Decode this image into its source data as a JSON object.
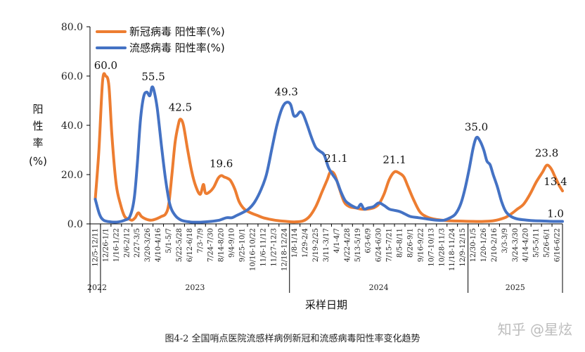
{
  "chart_data": {
    "type": "line",
    "ylabel_chars": [
      "阳",
      "性",
      "率",
      "(%)"
    ],
    "xlabel": "采样日期",
    "ylim": [
      0,
      80
    ],
    "yticks": [
      "0.0",
      "20.0",
      "40.0",
      "60.0",
      "80.0"
    ],
    "grid": false,
    "legend_position": "top-left",
    "x_ticks": [
      "12/5-12/11",
      "12/26-1/1",
      "1/16-1/22",
      "2/6-2/12",
      "2/27-3/5",
      "3/20-3/26",
      "4/10-4/16",
      "5/1-5/7",
      "5/22-5/28",
      "6/12-6/18",
      "7/3-7/9",
      "7/24-7/30",
      "8/14-8/20",
      "9/4-9/10",
      "9/25-10/1",
      "10/16-10/22",
      "11/6-11/12",
      "11/27-12/3",
      "12/18-12/24",
      "1/8-1/14",
      "1/29-2/4",
      "2/19-2/25",
      "3/11-3/17",
      "4/1-4/7",
      "4/22-4/28",
      "5/13-5/19",
      "6/3-6/9",
      "6/24-6/30",
      "7/15-7/21",
      "8/5-8/11",
      "8/26-9/1",
      "9/16-9/22",
      "10/7-10/13",
      "10/28-11/3",
      "11/18-11/24",
      "12/9-12/15",
      "12/30-1/5",
      "1/20-1/26",
      "2/10-2/16",
      "3/3-3/9",
      "3/24-3/30",
      "4/14-4/20",
      "5/5-5/11",
      "5/26-6/1",
      "6/16-6/22"
    ],
    "years": [
      {
        "label": "2022",
        "start": 0,
        "end": 1
      },
      {
        "label": "2023",
        "start": 1,
        "end": 18
      },
      {
        "label": "2024",
        "start": 19,
        "end": 35
      },
      {
        "label": "2025",
        "start": 36,
        "end": 44
      }
    ],
    "series": [
      {
        "name": "新冠病毒 阳性率(%)",
        "color": "#ED7D31",
        "points": [
          [
            0,
            10
          ],
          [
            0.35,
            30
          ],
          [
            0.7,
            58
          ],
          [
            1,
            60
          ],
          [
            1.3,
            56
          ],
          [
            1.6,
            35
          ],
          [
            2,
            16
          ],
          [
            2.4,
            8
          ],
          [
            2.8,
            3
          ],
          [
            3.2,
            2
          ],
          [
            3.5,
            1.5
          ],
          [
            3.8,
            2.5
          ],
          [
            4.1,
            4.5
          ],
          [
            4.4,
            3
          ],
          [
            4.8,
            2
          ],
          [
            5.3,
            1.5
          ],
          [
            5.8,
            2
          ],
          [
            6.3,
            3
          ],
          [
            6.7,
            4
          ],
          [
            7,
            8
          ],
          [
            7.3,
            20
          ],
          [
            7.6,
            33
          ],
          [
            7.9,
            40
          ],
          [
            8.1,
            42.5
          ],
          [
            8.4,
            40
          ],
          [
            8.8,
            30
          ],
          [
            9.2,
            21
          ],
          [
            9.6,
            15
          ],
          [
            10.0,
            12
          ],
          [
            10.3,
            16
          ],
          [
            10.5,
            12.5
          ],
          [
            10.9,
            13
          ],
          [
            11.3,
            15
          ],
          [
            11.7,
            18.5
          ],
          [
            12.0,
            19.6
          ],
          [
            12.3,
            19
          ],
          [
            12.6,
            18.5
          ],
          [
            12.9,
            17.5
          ],
          [
            13.3,
            14
          ],
          [
            13.7,
            9
          ],
          [
            14.2,
            6
          ],
          [
            14.8,
            4.5
          ],
          [
            15.4,
            3.5
          ],
          [
            16.0,
            2.5
          ],
          [
            16.7,
            1.8
          ],
          [
            17.4,
            1.3
          ],
          [
            18.2,
            1.0
          ],
          [
            19.0,
            0.8
          ],
          [
            19.8,
            1.2
          ],
          [
            20.4,
            3
          ],
          [
            21.0,
            7
          ],
          [
            21.6,
            13
          ],
          [
            22.1,
            18
          ],
          [
            22.4,
            21.1
          ],
          [
            22.8,
            20
          ],
          [
            23.2,
            15
          ],
          [
            23.7,
            9
          ],
          [
            24.2,
            7
          ],
          [
            24.8,
            6.5
          ],
          [
            25.3,
            6
          ],
          [
            25.9,
            6
          ],
          [
            26.5,
            6.5
          ],
          [
            27.0,
            8
          ],
          [
            27.5,
            12
          ],
          [
            28.0,
            18
          ],
          [
            28.5,
            21.1
          ],
          [
            29.0,
            20.5
          ],
          [
            29.4,
            19
          ],
          [
            29.8,
            15
          ],
          [
            30.3,
            10
          ],
          [
            30.9,
            5
          ],
          [
            31.5,
            3
          ],
          [
            32.2,
            2
          ],
          [
            33.0,
            1.5
          ],
          [
            34.0,
            1.2
          ],
          [
            35.0,
            1.1
          ],
          [
            36.0,
            1.0
          ],
          [
            37.0,
            1.0
          ],
          [
            38.0,
            1.3
          ],
          [
            39.0,
            2.5
          ],
          [
            39.6,
            4
          ],
          [
            40.2,
            6
          ],
          [
            40.8,
            8
          ],
          [
            41.4,
            12
          ],
          [
            42.0,
            17
          ],
          [
            42.6,
            21
          ],
          [
            43.0,
            23.8
          ],
          [
            43.4,
            22.5
          ],
          [
            43.8,
            19
          ],
          [
            44.2,
            15.5
          ],
          [
            44.5,
            13.4
          ]
        ]
      },
      {
        "name": "流感病毒 阳性率(%)",
        "color": "#4472C4",
        "points": [
          [
            0,
            10
          ],
          [
            0.4,
            4
          ],
          [
            0.8,
            1.5
          ],
          [
            1.5,
            0.8
          ],
          [
            2.2,
            0.8
          ],
          [
            2.8,
            1.5
          ],
          [
            3.3,
            3
          ],
          [
            3.7,
            10
          ],
          [
            4.0,
            24
          ],
          [
            4.3,
            42
          ],
          [
            4.6,
            51.5
          ],
          [
            4.9,
            53.5
          ],
          [
            5.2,
            52
          ],
          [
            5.4,
            55.5
          ],
          [
            5.6,
            54
          ],
          [
            5.9,
            47
          ],
          [
            6.3,
            32
          ],
          [
            6.7,
            18
          ],
          [
            7.1,
            8
          ],
          [
            7.6,
            3.5
          ],
          [
            8.2,
            1.5
          ],
          [
            9.0,
            0.8
          ],
          [
            10.0,
            0.7
          ],
          [
            11.0,
            1.0
          ],
          [
            11.8,
            1.5
          ],
          [
            12.5,
            2.5
          ],
          [
            13.0,
            2.5
          ],
          [
            13.5,
            3.5
          ],
          [
            14.0,
            4.5
          ],
          [
            14.6,
            6
          ],
          [
            15.2,
            9
          ],
          [
            15.8,
            14
          ],
          [
            16.3,
            20
          ],
          [
            16.8,
            30
          ],
          [
            17.3,
            40
          ],
          [
            17.8,
            47
          ],
          [
            18.2,
            49.3
          ],
          [
            18.6,
            48.5
          ],
          [
            18.9,
            44
          ],
          [
            19.2,
            44
          ],
          [
            19.5,
            45.5
          ],
          [
            19.8,
            44.5
          ],
          [
            20.2,
            40
          ],
          [
            20.6,
            35
          ],
          [
            21.0,
            31
          ],
          [
            21.4,
            29.5
          ],
          [
            21.8,
            28
          ],
          [
            22.2,
            23
          ],
          [
            22.6,
            20
          ],
          [
            23.0,
            17.5
          ],
          [
            23.4,
            13
          ],
          [
            23.8,
            9.5
          ],
          [
            24.2,
            8
          ],
          [
            24.6,
            7
          ],
          [
            25.0,
            6.5
          ],
          [
            25.3,
            8
          ],
          [
            25.6,
            6
          ],
          [
            26.0,
            6.5
          ],
          [
            26.5,
            7
          ],
          [
            27.0,
            8.5
          ],
          [
            27.5,
            7.5
          ],
          [
            28.0,
            6
          ],
          [
            28.5,
            5.5
          ],
          [
            29.0,
            5
          ],
          [
            29.5,
            4
          ],
          [
            30.0,
            3
          ],
          [
            30.8,
            2.5
          ],
          [
            31.6,
            2
          ],
          [
            32.5,
            1.5
          ],
          [
            33.2,
            1.5
          ],
          [
            33.8,
            2.5
          ],
          [
            34.3,
            4
          ],
          [
            34.8,
            8
          ],
          [
            35.2,
            14
          ],
          [
            35.6,
            22
          ],
          [
            36.0,
            31
          ],
          [
            36.3,
            35
          ],
          [
            36.6,
            34
          ],
          [
            37.0,
            30
          ],
          [
            37.3,
            25.5
          ],
          [
            37.6,
            24
          ],
          [
            37.9,
            20
          ],
          [
            38.3,
            15
          ],
          [
            38.7,
            9
          ],
          [
            39.1,
            5
          ],
          [
            39.6,
            3
          ],
          [
            40.2,
            2
          ],
          [
            40.9,
            1.6
          ],
          [
            41.6,
            1.3
          ],
          [
            42.3,
            1.2
          ],
          [
            43.0,
            1.1
          ],
          [
            43.6,
            1.0
          ],
          [
            44.5,
            1.0
          ]
        ]
      }
    ],
    "annotations": [
      {
        "text": "60.0",
        "x": 1.0,
        "y": 60.0
      },
      {
        "text": "55.5",
        "x": 5.4,
        "y": 55.5
      },
      {
        "text": "42.5",
        "x": 8.1,
        "y": 42.5
      },
      {
        "text": "19.6",
        "x": 12.0,
        "y": 19.6
      },
      {
        "text": "49.3",
        "x": 18.2,
        "y": 49.3
      },
      {
        "text": "21.1",
        "x": 22.4,
        "y": 21.1
      },
      {
        "text": "21.1",
        "x": 28.5,
        "y": 21.1
      },
      {
        "text": "35.0",
        "x": 36.3,
        "y": 35.0
      },
      {
        "text": "23.8",
        "x": 43.0,
        "y": 23.8
      },
      {
        "text": "13.4",
        "x": 44.5,
        "y": 13.4
      },
      {
        "text": "1.0",
        "x": 44.5,
        "y": 1.0
      }
    ]
  },
  "caption": "图4-2 全国哨点医院流感样病例新冠和流感病毒阳性率变化趋势",
  "watermark": "知乎 @星炫"
}
